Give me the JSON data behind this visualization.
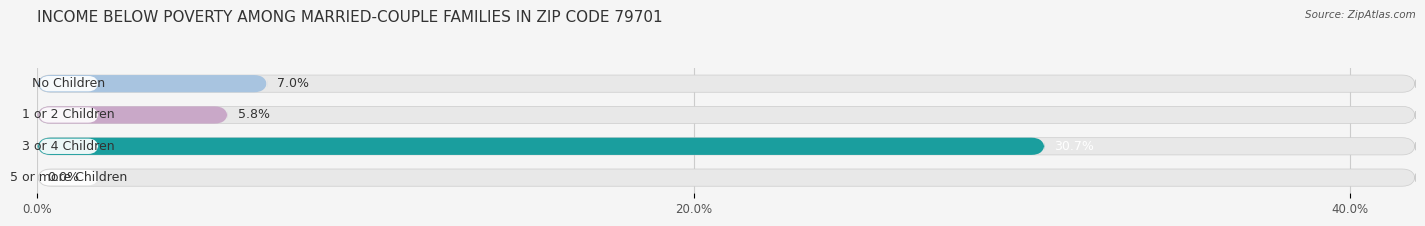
{
  "title": "INCOME BELOW POVERTY AMONG MARRIED-COUPLE FAMILIES IN ZIP CODE 79701",
  "source": "Source: ZipAtlas.com",
  "categories": [
    "No Children",
    "1 or 2 Children",
    "3 or 4 Children",
    "5 or more Children"
  ],
  "values": [
    7.0,
    5.8,
    30.7,
    0.0
  ],
  "bar_colors": [
    "#a8c4e0",
    "#c9a8c8",
    "#1a9e9e",
    "#b0b8e8"
  ],
  "label_colors": [
    "#333333",
    "#333333",
    "#ffffff",
    "#333333"
  ],
  "xlim": [
    0,
    42
  ],
  "xticks": [
    0.0,
    20.0,
    40.0
  ],
  "xtick_labels": [
    "0.0%",
    "20.0%",
    "40.0%"
  ],
  "background_color": "#f5f5f5",
  "bar_background_color": "#e8e8e8",
  "title_fontsize": 11,
  "label_fontsize": 9,
  "tick_fontsize": 8.5,
  "bar_height": 0.55
}
